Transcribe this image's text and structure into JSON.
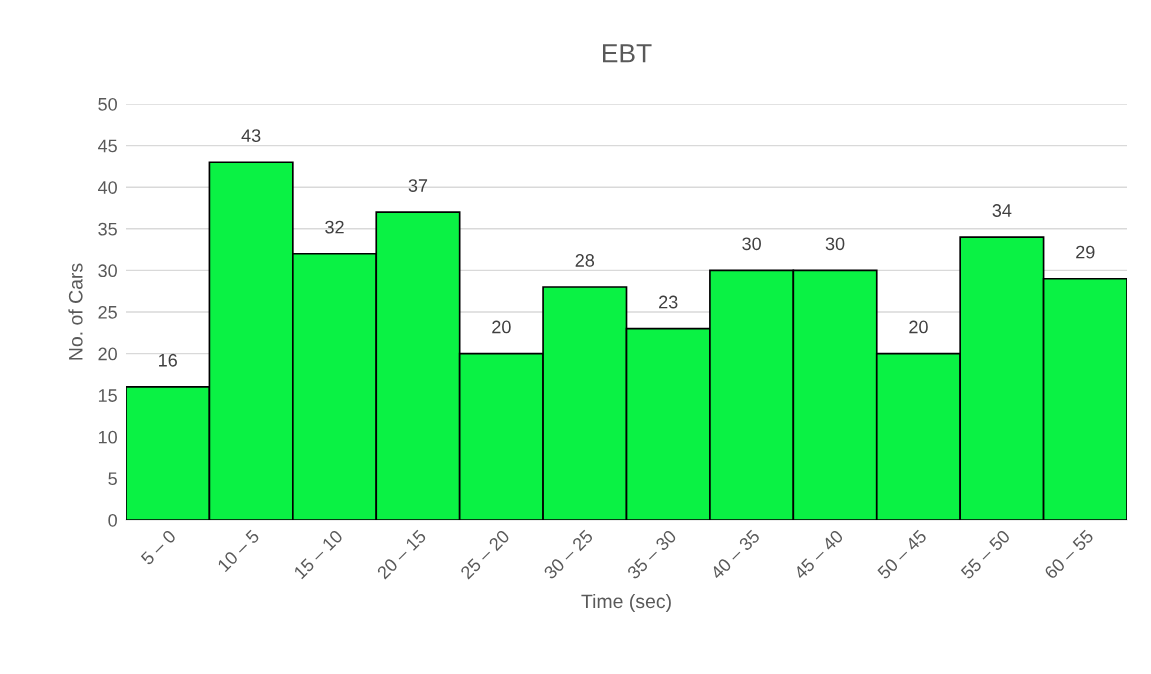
{
  "chart_data": {
    "type": "bar",
    "title": "EBT",
    "xlabel": "Time (sec)",
    "ylabel": "No. of Cars",
    "categories": [
      "5 – 0",
      "10 – 5",
      "15 – 10",
      "20 – 15",
      "25 – 20",
      "30 – 25",
      "35 – 30",
      "40 – 35",
      "45 – 40",
      "50 – 45",
      "55 – 50",
      "60 – 55"
    ],
    "values": [
      16,
      43,
      32,
      37,
      20,
      28,
      23,
      30,
      30,
      20,
      34,
      29
    ],
    "color": "#0af244",
    "ylim": [
      0,
      50
    ],
    "yticks": [
      0,
      5,
      10,
      15,
      20,
      25,
      30,
      35,
      40,
      45,
      50
    ],
    "grid": "y",
    "data_labels": true,
    "legend": false
  }
}
